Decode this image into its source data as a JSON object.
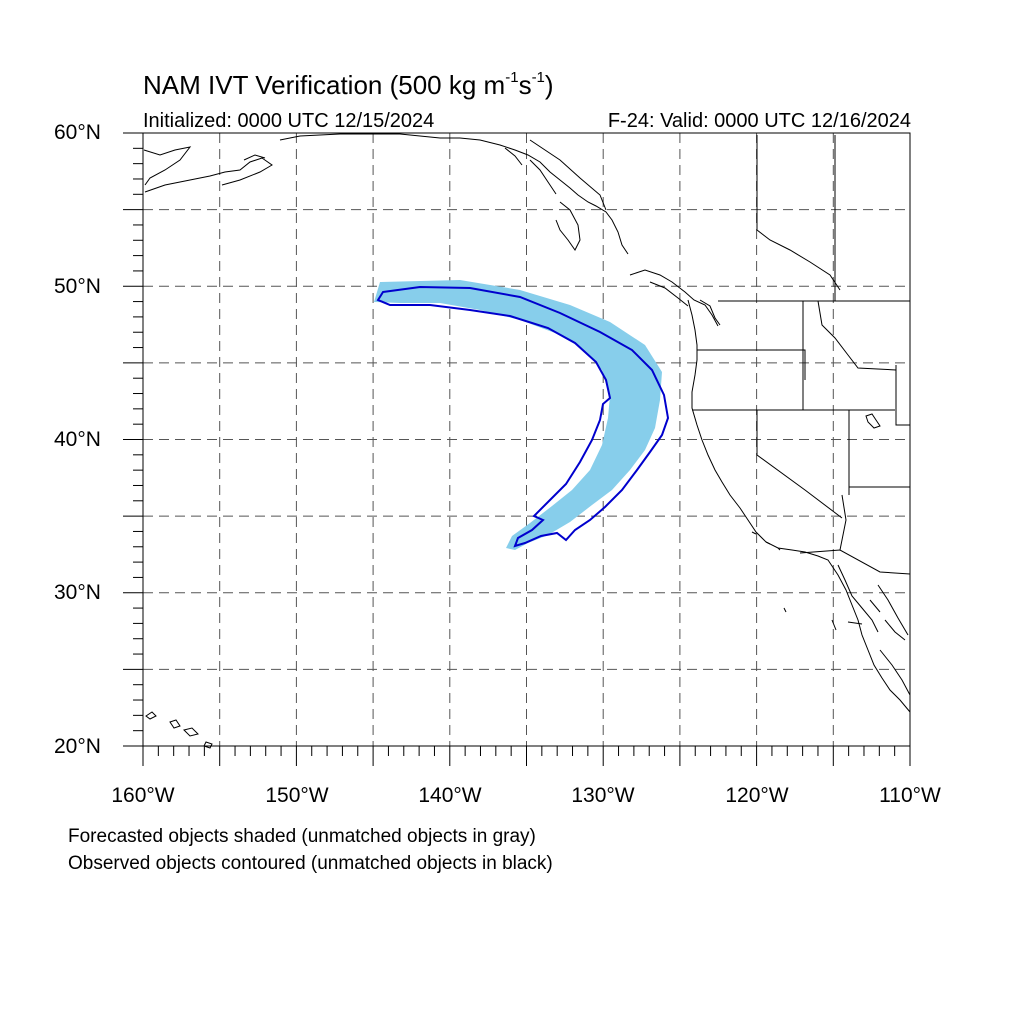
{
  "title": {
    "main": "NAM IVT Verification (500 kg m",
    "sup1": "-1",
    "mid": "s",
    "sup2": "-1",
    "end": ")"
  },
  "initialized": "Initialized: 0000 UTC 12/15/2024",
  "valid": "F-24: Valid: 0000 UTC 12/16/2024",
  "lat_labels": [
    "60°N",
    "50°N",
    "40°N",
    "30°N",
    "20°N"
  ],
  "lon_labels": [
    "160°W",
    "150°W",
    "140°W",
    "130°W",
    "120°W",
    "110°W"
  ],
  "notes": [
    "Forecasted objects shaded (unmatched objects in gray)",
    "Observed objects contoured (unmatched objects in black)"
  ],
  "colors": {
    "forecast_fill": "#87ceeb",
    "observed_contour": "#0000cd",
    "coastline": "#000000",
    "grid": "#555555"
  },
  "map_extent": {
    "lon_min": -160,
    "lon_max": -110,
    "lat_min": 20,
    "lat_max": 60
  },
  "grid_spacing_deg": 5
}
